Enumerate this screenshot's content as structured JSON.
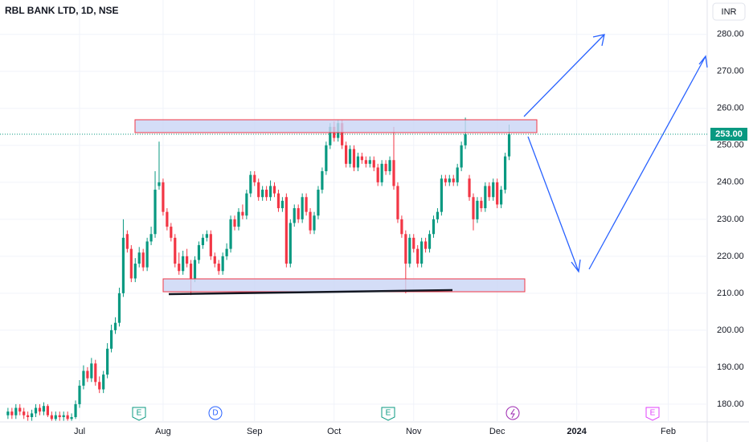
{
  "chart_data": {
    "type": "candlestick",
    "title": "RBL BANK LTD, 1D, NSE",
    "currency": "INR",
    "colors": {
      "up": "#089981",
      "down": "#f23645"
    },
    "ylim": [
      175.2,
      289.3
    ],
    "xlim": [
      -2,
      175.8
    ],
    "grid": true,
    "yticks": [
      {
        "value": 180,
        "label": "180.00"
      },
      {
        "value": 190,
        "label": "190.00"
      },
      {
        "value": 200,
        "label": "200.00"
      },
      {
        "value": 210,
        "label": "210.00"
      },
      {
        "value": 220,
        "label": "220.00"
      },
      {
        "value": 230,
        "label": "230.00"
      },
      {
        "value": 240,
        "label": "240.00"
      },
      {
        "value": 250,
        "label": "250.00"
      },
      {
        "value": 260,
        "label": "260.00"
      },
      {
        "value": 270,
        "label": "270.00"
      },
      {
        "value": 280,
        "label": "280.00"
      }
    ],
    "xticks": [
      {
        "value": 18,
        "label": "Jul"
      },
      {
        "value": 39,
        "label": "Aug"
      },
      {
        "value": 62,
        "label": "Sep"
      },
      {
        "value": 82,
        "label": "Oct"
      },
      {
        "value": 102,
        "label": "Nov"
      },
      {
        "value": 123,
        "label": "Dec"
      },
      {
        "value": 143,
        "label": "2024"
      },
      {
        "value": 166,
        "label": "Feb"
      }
    ],
    "last_price": {
      "value": 253,
      "label": "253.00"
    },
    "events": [
      "E",
      "D",
      "E",
      "E"
    ],
    "open": [
      177,
      178,
      177,
      179,
      178,
      177,
      176.5,
      177.5,
      179,
      178,
      179.5,
      177,
      176,
      177,
      176.5,
      177,
      176,
      176.5,
      180,
      185,
      189,
      187,
      191,
      186,
      184,
      188,
      195,
      200,
      202,
      210,
      226,
      222,
      214,
      218,
      221,
      217,
      224,
      226,
      239,
      240,
      232,
      228,
      225,
      218,
      216,
      220,
      218,
      214,
      219,
      223,
      225,
      226,
      220,
      218,
      216,
      220,
      222,
      230,
      228,
      232,
      231,
      237,
      242,
      240,
      236,
      238,
      236,
      239,
      237,
      233,
      236,
      218,
      229,
      233,
      230,
      236,
      232,
      227,
      231,
      238,
      243,
      250,
      255,
      252,
      256,
      250,
      245,
      249,
      244,
      247,
      246,
      245,
      246,
      244,
      240,
      245,
      243,
      246,
      239,
      230,
      226,
      218,
      225,
      222,
      218,
      224,
      222,
      226,
      230,
      232,
      241,
      240,
      241,
      240,
      244,
      250,
      241,
      236,
      230,
      235,
      233,
      239,
      236,
      240,
      234,
      238,
      247
    ],
    "high": [
      179,
      179,
      180,
      180,
      179,
      178,
      178.5,
      180,
      180,
      180.5,
      180,
      178,
      178,
      178,
      178,
      178,
      177.5,
      181,
      186.5,
      190.5,
      190,
      192.5,
      192,
      187.5,
      189,
      196.5,
      201.5,
      203.5,
      211.5,
      230,
      227,
      223,
      219.5,
      222.5,
      222,
      225,
      228,
      243,
      251,
      241,
      233,
      229,
      226,
      221,
      221.5,
      222,
      219,
      220,
      224,
      226,
      227,
      227,
      221,
      219,
      221,
      223.5,
      231,
      231,
      233,
      234,
      238,
      243,
      243,
      241,
      239,
      239,
      240.5,
      240,
      238,
      236,
      237,
      230,
      234,
      234,
      237,
      237,
      233,
      232,
      239,
      244,
      251,
      256,
      256.5,
      257,
      257,
      251,
      250,
      250,
      248,
      248,
      247,
      247,
      247,
      245,
      246,
      246,
      247,
      255,
      240,
      231,
      227,
      226,
      226,
      223,
      225,
      225,
      227,
      231,
      233,
      242,
      242,
      242,
      242,
      245,
      251,
      257.5,
      242,
      237,
      236,
      236,
      240,
      240,
      241,
      241,
      239,
      248,
      255.6
    ],
    "low": [
      176,
      176,
      176,
      177,
      176,
      175.5,
      175.5,
      176.5,
      177,
      177,
      176.5,
      175.5,
      175.5,
      175.5,
      175.5,
      175.5,
      175.5,
      176,
      179,
      184,
      186,
      186,
      185,
      183,
      183,
      187,
      194,
      199,
      201,
      209,
      221,
      213,
      213,
      217,
      216,
      216,
      223,
      225,
      238,
      231,
      227,
      224,
      217,
      215,
      215,
      217,
      209.5,
      213,
      218,
      222,
      224,
      219,
      217,
      215,
      215,
      219,
      221,
      227,
      227,
      230,
      230,
      236,
      239,
      235,
      235,
      235,
      235,
      236,
      232,
      232,
      217,
      217,
      228,
      229,
      229,
      231,
      226,
      226,
      230,
      237,
      242,
      249,
      251,
      251,
      249,
      244,
      244,
      243,
      243,
      245,
      244,
      244,
      243,
      239,
      239,
      242,
      242,
      238,
      229,
      225,
      210,
      217,
      221,
      217,
      217,
      221,
      221,
      225,
      229,
      231,
      239,
      239,
      239,
      239,
      243,
      249,
      235,
      227,
      229,
      232,
      232,
      235,
      235,
      233,
      233,
      237,
      246
    ],
    "close": [
      178,
      177,
      179,
      178,
      177,
      176.5,
      177.5,
      179,
      178,
      179.5,
      177,
      176,
      177,
      176.5,
      177,
      176,
      176.5,
      180,
      185,
      189,
      187,
      191,
      186,
      184,
      188,
      195,
      200,
      202,
      210,
      225,
      222,
      214,
      218,
      221,
      217,
      224,
      226,
      238,
      240,
      232,
      228,
      225,
      218,
      216,
      220,
      218,
      214,
      219,
      223,
      225,
      226,
      220,
      218,
      216,
      220,
      222,
      230,
      228,
      232,
      231,
      237,
      242,
      240,
      236,
      238,
      236,
      239,
      237,
      233,
      235,
      218,
      229,
      233,
      230,
      236,
      232,
      227,
      231,
      238,
      243,
      250,
      255,
      252,
      256,
      250,
      245,
      249,
      244,
      247,
      246,
      245,
      246,
      244,
      240,
      245,
      243,
      246,
      239,
      230,
      226,
      218,
      225,
      222,
      218,
      224,
      222,
      226,
      230,
      232,
      241,
      240,
      241,
      240,
      244,
      250,
      253,
      236,
      230,
      235,
      233,
      239,
      236,
      240,
      234,
      238,
      247,
      253
    ]
  }
}
